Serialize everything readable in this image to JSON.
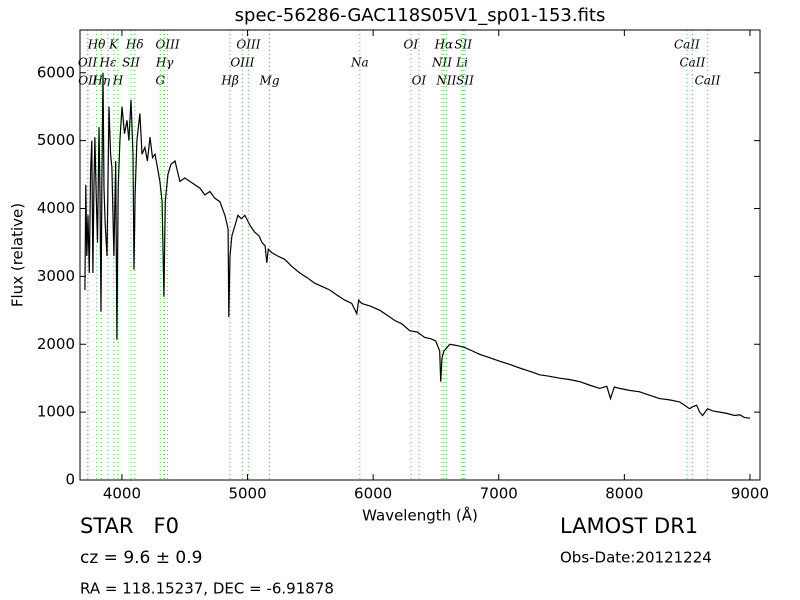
{
  "chart_data": {
    "type": "line",
    "title": "spec-56286-GAC118S05V1_sp01-153.fits",
    "xlabel": "Wavelength (Å)",
    "ylabel": "Flux (relative)",
    "xlim": [
      3666,
      9080
    ],
    "ylim": [
      0,
      6630
    ],
    "xticks": [
      4000,
      5000,
      6000,
      7000,
      8000,
      9000
    ],
    "yticks": [
      0,
      1000,
      2000,
      3000,
      4000,
      5000,
      6000
    ],
    "series": [
      {
        "name": "Flux",
        "color": "#000000",
        "x": [
          3705,
          3712,
          3720,
          3730,
          3740,
          3750,
          3760,
          3769,
          3777,
          3785,
          3795,
          3805,
          3817,
          3825,
          3833,
          3841,
          3849,
          3857,
          3866,
          3881,
          3897,
          3910,
          3920,
          3936,
          3950,
          3960,
          3970,
          3984,
          4000,
          4020,
          4040,
          4055,
          4072,
          4088,
          4096,
          4105,
          4119,
          4143,
          4160,
          4183,
          4203,
          4223,
          4243,
          4263,
          4283,
          4302,
          4320,
          4334,
          4345,
          4366,
          4390,
          4422,
          4461,
          4500,
          4541,
          4580,
          4621,
          4660,
          4700,
          4740,
          4780,
          4820,
          4845,
          4851,
          4860,
          4875,
          4900,
          4923,
          4950,
          4979,
          5020,
          5058,
          5090,
          5114,
          5140,
          5153,
          5165,
          5193,
          5240,
          5297,
          5350,
          5416,
          5475,
          5535,
          5595,
          5655,
          5715,
          5774,
          5830,
          5870,
          5885,
          5909,
          5980,
          6053,
          6110,
          6172,
          6230,
          6291,
          6350,
          6411,
          6460,
          6498,
          6530,
          6538,
          6548,
          6563,
          6610,
          6670,
          6730,
          6790,
          6850,
          6930,
          7007,
          7090,
          7166,
          7250,
          7326,
          7400,
          7485,
          7560,
          7644,
          7720,
          7803,
          7860,
          7890,
          7920,
          7962,
          8040,
          8121,
          8200,
          8280,
          8360,
          8439,
          8480,
          8519,
          8545,
          8575,
          8600,
          8623,
          8662,
          8700,
          8758,
          8820,
          8878,
          8920,
          8957,
          9000
        ],
        "values": [
          2800,
          4350,
          3300,
          3900,
          3050,
          4550,
          5000,
          3050,
          4300,
          5050,
          4200,
          3500,
          5200,
          4200,
          2480,
          4600,
          6000,
          4300,
          3800,
          3300,
          5500,
          4800,
          4600,
          3300,
          4700,
          2065,
          4300,
          5000,
          5500,
          5100,
          5300,
          5000,
          5600,
          4800,
          3100,
          4200,
          5000,
          5400,
          4800,
          4900,
          4700,
          5050,
          4750,
          4800,
          4600,
          4400,
          4100,
          2700,
          4100,
          4500,
          4650,
          4700,
          4400,
          4450,
          4400,
          4350,
          4300,
          4200,
          4250,
          4150,
          4100,
          3900,
          3700,
          2400,
          3300,
          3600,
          3750,
          3900,
          3850,
          3900,
          3750,
          3650,
          3600,
          3500,
          3450,
          3200,
          3400,
          3350,
          3300,
          3250,
          3150,
          3050,
          2980,
          2900,
          2850,
          2800,
          2720,
          2650,
          2600,
          2450,
          2650,
          2600,
          2560,
          2500,
          2430,
          2350,
          2300,
          2200,
          2180,
          2100,
          2080,
          2050,
          1900,
          1450,
          1800,
          1900,
          2000,
          1980,
          1950,
          1900,
          1850,
          1800,
          1750,
          1700,
          1650,
          1600,
          1550,
          1530,
          1500,
          1480,
          1450,
          1400,
          1350,
          1380,
          1200,
          1370,
          1350,
          1320,
          1300,
          1250,
          1200,
          1180,
          1150,
          1100,
          1050,
          1080,
          1100,
          1000,
          950,
          1050,
          1020,
          1000,
          980,
          950,
          960,
          920,
          910
        ]
      }
    ],
    "lines": [
      {
        "label": "OII",
        "wavelength": 3726
      },
      {
        "label": "OII",
        "wavelength": 3729
      },
      {
        "label": "Hθ",
        "wavelength": 3798
      },
      {
        "label": "Hη",
        "wavelength": 3835
      },
      {
        "label": "Hε",
        "wavelength": 3889
      },
      {
        "label": "K",
        "wavelength": 3934
      },
      {
        "label": "SII",
        "wavelength": 4072
      },
      {
        "label": "H",
        "wavelength": 3968
      },
      {
        "label": "Hδ",
        "wavelength": 4102
      },
      {
        "label": "G",
        "wavelength": 4305
      },
      {
        "label": "Hγ",
        "wavelength": 4340
      },
      {
        "label": "OIII",
        "wavelength": 4363
      },
      {
        "label": "Hβ",
        "wavelength": 4861
      },
      {
        "label": "OIII",
        "wavelength": 4959
      },
      {
        "label": "OIII",
        "wavelength": 5007
      },
      {
        "label": "Mg",
        "wavelength": 5175
      },
      {
        "label": "Na",
        "wavelength": 5894
      },
      {
        "label": "OI",
        "wavelength": 6300
      },
      {
        "label": "OI",
        "wavelength": 6364
      },
      {
        "label": "NII",
        "wavelength": 6548
      },
      {
        "label": "Hα",
        "wavelength": 6563
      },
      {
        "label": "NII",
        "wavelength": 6583
      },
      {
        "label": "Li",
        "wavelength": 6708
      },
      {
        "label": "SII",
        "wavelength": 6717
      },
      {
        "label": "SII",
        "wavelength": 6731
      },
      {
        "label": "CaII",
        "wavelength": 8498
      },
      {
        "label": "CaII",
        "wavelength": 8542
      },
      {
        "label": "CaII",
        "wavelength": 8662
      }
    ],
    "line_color": "#66cc66",
    "object": "STAR   F0",
    "redshift": "cz = 9.6 ± 0.9",
    "coords": "RA = 118.15237, DEC = -6.91878",
    "survey": "LAMOST DR1",
    "obs_date": "Obs-Date:20121224"
  }
}
